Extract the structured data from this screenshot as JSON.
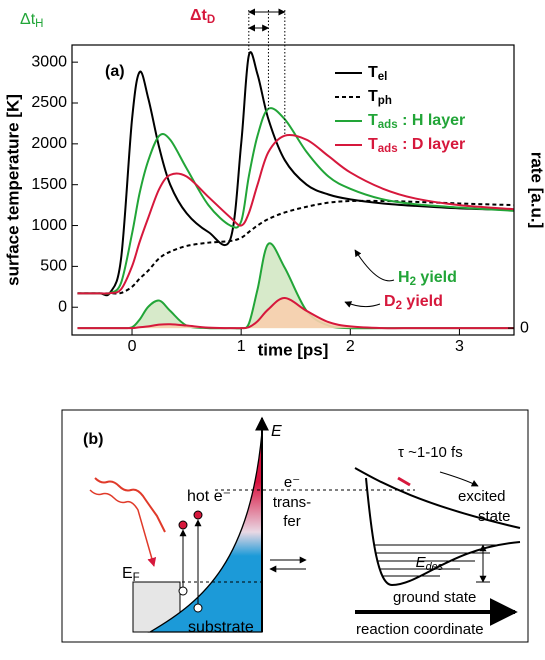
{
  "chart_data": {
    "type": "line",
    "panel_label": "(a)",
    "xlabel": "time [ps]",
    "ylabel": "surface temperature [K]",
    "y2label": "rate [a.u.]",
    "x": [
      -0.5,
      -0.3,
      -0.2,
      -0.1,
      0,
      0.07,
      0.15,
      0.25,
      0.35,
      0.5,
      0.7,
      0.9,
      1,
      1.07,
      1.15,
      1.25,
      1.4,
      1.6,
      1.8,
      2,
      2.3,
      2.6,
      3,
      3.5
    ],
    "xlim": [
      -0.55,
      3.5
    ],
    "xticks": [
      0,
      1,
      2,
      3
    ],
    "ylim": [
      -340,
      3210
    ],
    "yticks": [
      0,
      500,
      1000,
      1500,
      2000,
      2500,
      3000
    ],
    "y2lim": [
      -0.08,
      3.29
    ],
    "y2ticks": [
      0
    ],
    "series": [
      {
        "name": "Tel",
        "color": "#000000",
        "style": "solid",
        "values": [
          170,
          170,
          180,
          600,
          2300,
          2880,
          2550,
          1950,
          1500,
          1150,
          920,
          830,
          2000,
          3080,
          2850,
          2300,
          1800,
          1500,
          1380,
          1320,
          1270,
          1240,
          1210,
          1190
        ]
      },
      {
        "name": "Tph",
        "color": "#000000",
        "style": "dashed",
        "values": [
          170,
          170,
          170,
          175,
          250,
          350,
          450,
          600,
          680,
          750,
          790,
          810,
          850,
          920,
          1000,
          1080,
          1160,
          1230,
          1280,
          1300,
          1300,
          1290,
          1270,
          1250
        ]
      },
      {
        "name": "Tads : H layer",
        "color": "#22a538",
        "style": "solid",
        "values": [
          170,
          170,
          175,
          300,
          900,
          1400,
          1800,
          2100,
          2050,
          1700,
          1250,
          1000,
          1050,
          1600,
          2100,
          2430,
          2300,
          1900,
          1600,
          1450,
          1320,
          1260,
          1220,
          1180
        ]
      },
      {
        "name": "Tads : D layer",
        "color": "#d6183c",
        "style": "solid",
        "values": [
          170,
          170,
          172,
          220,
          500,
          800,
          1100,
          1450,
          1620,
          1600,
          1350,
          1100,
          1000,
          1150,
          1500,
          1900,
          2100,
          2050,
          1850,
          1650,
          1450,
          1330,
          1250,
          1200
        ]
      },
      {
        "name": "H2 yield",
        "color": "#22a538",
        "fill_color": "#d3e8c4",
        "axis": "y2",
        "values": [
          0,
          0,
          0,
          0,
          0.01,
          0.1,
          0.25,
          0.32,
          0.2,
          0.03,
          0,
          0,
          0,
          0.05,
          0.45,
          0.98,
          0.7,
          0.2,
          0.03,
          0,
          0,
          0,
          0,
          0
        ]
      },
      {
        "name": "D2 yield",
        "color": "#d6183c",
        "fill_color": "#f8cfae",
        "axis": "y2",
        "values": [
          0,
          0,
          0,
          0,
          0,
          0.01,
          0.02,
          0.04,
          0.045,
          0.03,
          0.005,
          0,
          0,
          0.01,
          0.08,
          0.22,
          0.35,
          0.2,
          0.07,
          0.02,
          0,
          0,
          0,
          0
        ]
      }
    ],
    "annotations": [
      "ΔtH",
      "ΔtD"
    ]
  },
  "diagram": {
    "label": "(b)",
    "energy_axis": "E",
    "hot_electron": "hot e⁻",
    "fermi_level": "EF",
    "substrate": "substrate",
    "transfer": [
      "e⁻",
      "trans-",
      "fer"
    ],
    "lifetime": "τ ~1-10 fs",
    "excited_state": [
      "excited",
      "state"
    ],
    "desorption_energy": "Edes",
    "ground_state": "ground state",
    "reaction_coordinate": "reaction coordinate"
  }
}
